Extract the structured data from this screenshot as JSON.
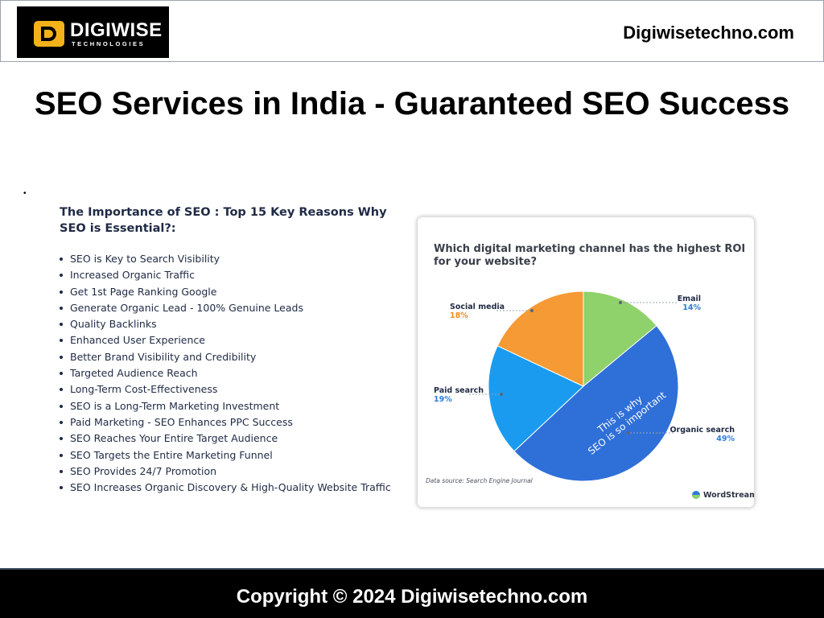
{
  "header": {
    "logo_text": "DIGIWISE",
    "logo_subtext": "TECHNOLOGIES",
    "site_url": "Digiwisetechno.com"
  },
  "page_title": "SEO Services in India - Guaranteed SEO Success",
  "bullet_dot": "•",
  "reasons": {
    "heading": "The Importance of SEO : Top 15 Key Reasons Why SEO is Essential?:",
    "items": [
      "SEO is Key to Search Visibility",
      "Increased Organic Traffic",
      "Get 1st Page Ranking Google",
      "Generate Organic Lead - 100% Genuine Leads",
      "Quality Backlinks",
      "Enhanced User Experience",
      "Better Brand Visibility and Credibility",
      "Targeted Audience Reach",
      "Long-Term Cost-Effectiveness",
      "SEO is a Long-Term Marketing Investment",
      "Paid Marketing - SEO Enhances PPC Success",
      "SEO Reaches Your Entire Target Audience",
      "SEO Targets the Entire Marketing Funnel",
      "SEO Provides 24/7 Promotion",
      "SEO Increases Organic Discovery & High-Quality Website Traffic"
    ]
  },
  "chart_data": {
    "type": "pie",
    "title": "Which digital marketing channel has the highest ROI for your website?",
    "slices": [
      {
        "label": "Email",
        "value": 14,
        "value_label": "14%",
        "color": "#8fd16a"
      },
      {
        "label": "Organic search",
        "value": 49,
        "value_label": "49%",
        "color": "#2f6fd8"
      },
      {
        "label": "Paid search",
        "value": 19,
        "value_label": "19%",
        "color": "#1a9bf0"
      },
      {
        "label": "Social media",
        "value": 18,
        "value_label": "18%",
        "color": "#f59a34"
      }
    ],
    "annotation": "This is why SEO is so important",
    "source": "Data source: Search Engine Journal",
    "brand": "WordStream",
    "label_color_text": "#1f2a44",
    "label_color_value": "#2e7bd6",
    "social_value_color": "#f08c1e"
  },
  "footer": {
    "copyright": "Copyright © 2024 Digiwisetechno.com"
  }
}
